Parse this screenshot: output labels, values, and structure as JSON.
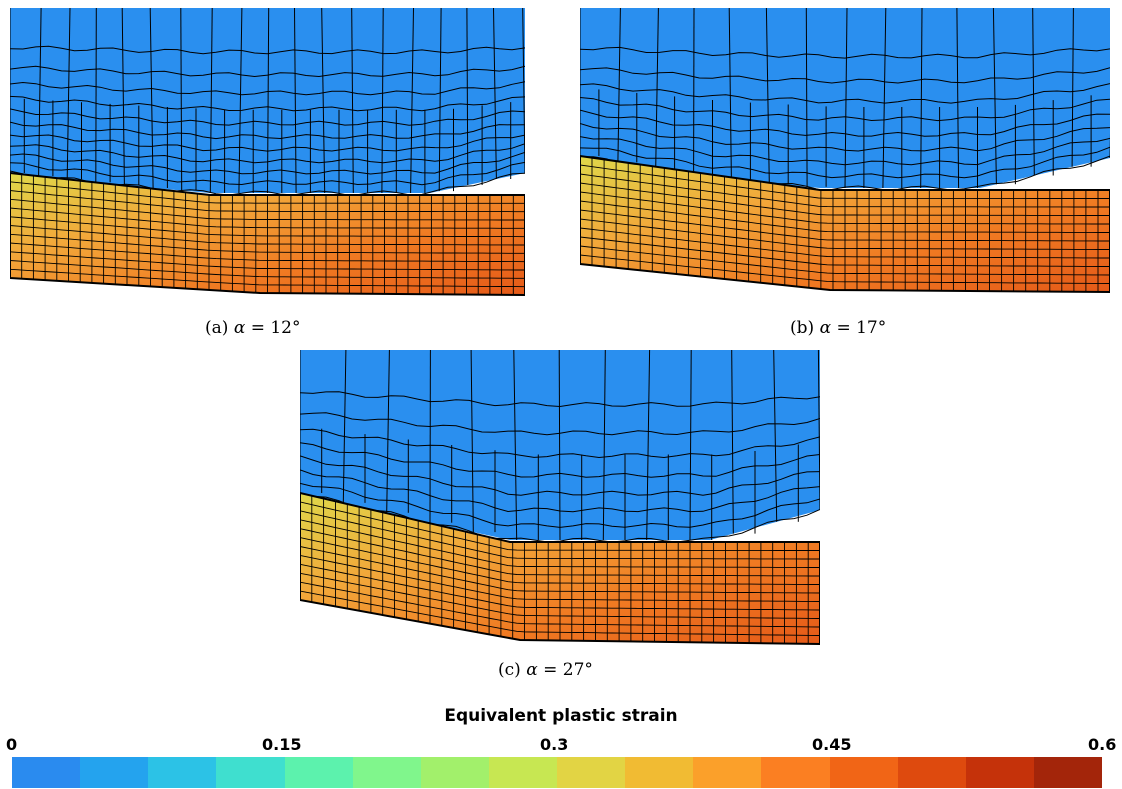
{
  "panels": [
    {
      "id": "a",
      "caption_prefix": "(a)",
      "symbol": "α",
      "equals": "=",
      "value": "12°"
    },
    {
      "id": "b",
      "caption_prefix": "(b)",
      "symbol": "α",
      "equals": "=",
      "value": "17°"
    },
    {
      "id": "c",
      "caption_prefix": "(c)",
      "symbol": "α",
      "equals": "=",
      "value": "27°"
    }
  ],
  "colors": {
    "tool": "#2a8fef",
    "mesh_line": "#000000",
    "chip_gradient": [
      "#dfd84a",
      "#f2a83a",
      "#f07a22",
      "#e55a18"
    ]
  },
  "legend": {
    "title": "Equivalent plastic strain",
    "min": 0,
    "max": 0.6,
    "ticks": [
      "0",
      "0.15",
      "0.3",
      "0.45",
      "0.6"
    ],
    "bins": [
      "#2a8bef",
      "#24a3ee",
      "#2cc2e6",
      "#3fdfcf",
      "#5cf2ad",
      "#80f68c",
      "#a2f06b",
      "#c7e752",
      "#e2d444",
      "#f1bb33",
      "#fba02a",
      "#fb7f22",
      "#f16516",
      "#de4a0e",
      "#c5320a",
      "#a3250a"
    ]
  }
}
